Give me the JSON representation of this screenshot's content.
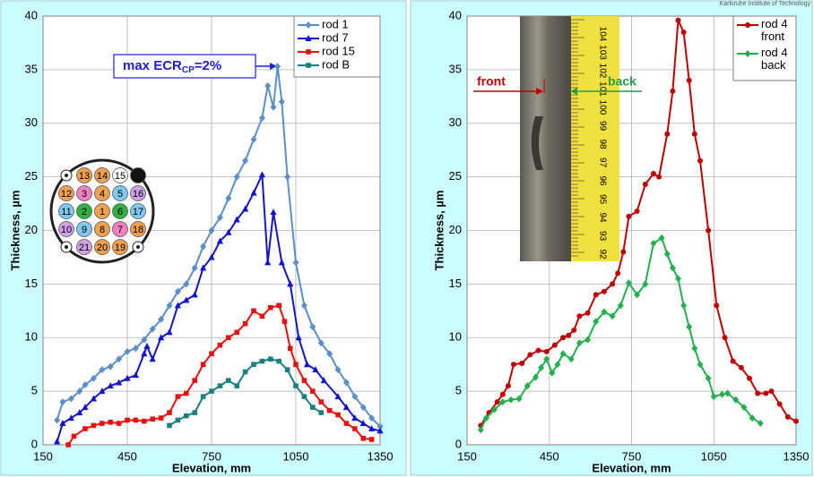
{
  "corner_text": "Karlsruhe Institute of Technology",
  "chart_data": [
    {
      "type": "line",
      "xlabel": "Elevation, mm",
      "ylabel": "Thickness, µm",
      "xlim": [
        150,
        1350
      ],
      "ylim": [
        0,
        40
      ],
      "xticks": [
        150,
        450,
        750,
        1050,
        1350
      ],
      "yticks": [
        0,
        5,
        10,
        15,
        20,
        25,
        30,
        35,
        40
      ],
      "grid": true,
      "legend": "upper right",
      "annotation": {
        "text": "max ECR",
        "sub": "CP",
        "suffix": "=2%"
      },
      "bundle": [
        {
          "label": "",
          "color": "dot"
        },
        {
          "label": "13",
          "color": "#f0a050"
        },
        {
          "label": "14",
          "color": "#f0a050"
        },
        {
          "label": "15",
          "color": "#ffffff"
        },
        {
          "label": "",
          "color": "#111111"
        },
        {
          "label": "12",
          "color": "#f0a050"
        },
        {
          "label": "3",
          "color": "#f080c0"
        },
        {
          "label": "4",
          "color": "#f0a050"
        },
        {
          "label": "5",
          "color": "#80c8f0"
        },
        {
          "label": "16",
          "color": "#d0a0e8"
        },
        {
          "label": "11",
          "color": "#80c8f0"
        },
        {
          "label": "2",
          "color": "#30b040"
        },
        {
          "label": "1",
          "color": "#f0a050"
        },
        {
          "label": "6",
          "color": "#30b040"
        },
        {
          "label": "17",
          "color": "#80c8f0"
        },
        {
          "label": "10",
          "color": "#d0a0e8"
        },
        {
          "label": "9",
          "color": "#80c8f0"
        },
        {
          "label": "8",
          "color": "#f0a050"
        },
        {
          "label": "7",
          "color": "#f080c0"
        },
        {
          "label": "18",
          "color": "#f0a050"
        },
        {
          "label": "",
          "color": "dot"
        },
        {
          "label": "21",
          "color": "#d0a0e8"
        },
        {
          "label": "20",
          "color": "#f0a050"
        },
        {
          "label": "19",
          "color": "#f0a050"
        },
        {
          "label": "",
          "color": "dot"
        }
      ],
      "series": [
        {
          "name": "rod 1",
          "color": "#5b8fc7",
          "marker": "diamond",
          "x": [
            200,
            220,
            250,
            280,
            300,
            330,
            360,
            390,
            420,
            450,
            480,
            510,
            540,
            570,
            600,
            630,
            660,
            690,
            720,
            750,
            780,
            810,
            840,
            870,
            900,
            930,
            950,
            970,
            985,
            1000,
            1020,
            1050,
            1080,
            1110,
            1140,
            1170,
            1200,
            1230,
            1260,
            1290,
            1320,
            1350
          ],
          "values": [
            2.3,
            4,
            4.3,
            5,
            5.6,
            6.2,
            7,
            7.3,
            8,
            8.7,
            9,
            9.8,
            10.8,
            11.7,
            13,
            14.3,
            15,
            16.5,
            18.5,
            20,
            21.2,
            23,
            25,
            26.5,
            28.5,
            30.5,
            33.5,
            31.5,
            35.3,
            32,
            25,
            17,
            13,
            11,
            9.5,
            8.5,
            7,
            5.8,
            4.5,
            3.5,
            2.5,
            1.7
          ]
        },
        {
          "name": "rod 7",
          "color": "#1414cc",
          "marker": "triangle",
          "x": [
            200,
            220,
            250,
            280,
            300,
            330,
            360,
            390,
            420,
            450,
            480,
            510,
            520,
            540,
            570,
            600,
            630,
            660,
            690,
            720,
            750,
            780,
            810,
            840,
            870,
            900,
            930,
            950,
            970,
            1000,
            1030,
            1060,
            1090,
            1120,
            1150,
            1200,
            1230,
            1260,
            1290,
            1320,
            1350
          ],
          "values": [
            0.3,
            2,
            2.5,
            3,
            3.5,
            4.3,
            5,
            5.5,
            5.8,
            6.2,
            6.5,
            8.5,
            9.2,
            8,
            10,
            10.5,
            13,
            13.5,
            14,
            16.5,
            17.5,
            19,
            19.8,
            21,
            22,
            23.5,
            25.2,
            17,
            21.7,
            17,
            15,
            10,
            7.5,
            7,
            6,
            4.5,
            3.5,
            2.5,
            2,
            1.5,
            1.3
          ]
        },
        {
          "name": "rod 15",
          "color": "#e81010",
          "marker": "square",
          "x": [
            240,
            260,
            300,
            330,
            360,
            390,
            420,
            450,
            480,
            510,
            540,
            570,
            600,
            630,
            660,
            690,
            720,
            750,
            780,
            810,
            840,
            870,
            900,
            930,
            960,
            990,
            1010,
            1030,
            1050,
            1080,
            1110,
            1140,
            1170,
            1200,
            1230,
            1260,
            1290,
            1320
          ],
          "values": [
            0,
            0.8,
            1.5,
            1.8,
            2,
            2.1,
            2,
            2.3,
            2.3,
            2.2,
            2.4,
            2.5,
            3,
            4.5,
            4.8,
            6,
            7.5,
            8.5,
            9.3,
            10,
            10.5,
            11.3,
            12.5,
            12,
            12.8,
            13,
            11.5,
            9,
            7.5,
            6,
            5,
            4,
            3.2,
            2.8,
            2,
            1.5,
            0.6,
            0.5
          ]
        },
        {
          "name": "rod B",
          "color": "#1a8080",
          "marker": "square",
          "x": [
            600,
            630,
            660,
            690,
            720,
            750,
            780,
            810,
            840,
            870,
            900,
            930,
            960,
            990,
            1020,
            1050,
            1080,
            1110,
            1140
          ],
          "values": [
            1.8,
            2.3,
            2.7,
            3,
            4.5,
            5,
            5.5,
            6,
            5.5,
            6.8,
            7.5,
            7.8,
            8,
            7.8,
            7,
            5.5,
            4.5,
            3.5,
            3
          ]
        }
      ]
    },
    {
      "type": "line",
      "xlabel": "Elevation, mm",
      "ylabel": "Thickness, µm",
      "xlim": [
        150,
        1350
      ],
      "ylim": [
        0,
        40
      ],
      "xticks": [
        150,
        450,
        750,
        1050,
        1350
      ],
      "yticks": [
        0,
        5,
        10,
        15,
        20,
        25,
        30,
        35,
        40
      ],
      "grid": true,
      "legend": "upper right",
      "photo": {
        "front": "front",
        "back": "back",
        "ruler": [
          "104",
          "103",
          "102",
          "101",
          "100",
          "99",
          "98",
          "97",
          "96",
          "95",
          "94",
          "93",
          "92"
        ]
      },
      "series": [
        {
          "name": "rod 4 front",
          "color": "#c00000",
          "marker": "circle",
          "x": [
            200,
            230,
            260,
            280,
            300,
            320,
            350,
            380,
            410,
            440,
            470,
            500,
            520,
            540,
            560,
            590,
            620,
            650,
            680,
            700,
            720,
            740,
            770,
            800,
            830,
            850,
            880,
            900,
            920,
            940,
            960,
            980,
            1000,
            1030,
            1060,
            1090,
            1120,
            1150,
            1180,
            1210,
            1240,
            1260,
            1290,
            1320,
            1350
          ],
          "values": [
            1.8,
            3,
            4,
            4.7,
            5.5,
            7.5,
            7.6,
            8.4,
            8.8,
            8.7,
            9.3,
            10,
            10.2,
            10.7,
            12,
            12.3,
            14,
            14.3,
            15,
            16,
            18,
            21.3,
            21.8,
            24.3,
            25.3,
            25,
            29,
            33,
            39.6,
            38.5,
            34,
            29,
            26.5,
            20,
            13,
            10,
            7.8,
            7.2,
            6.2,
            4.8,
            4.8,
            5,
            3.8,
            2.6,
            2.2
          ]
        },
        {
          "name": "rod 4 back",
          "color": "#22b050",
          "marker": "diamond",
          "x": [
            200,
            220,
            250,
            280,
            310,
            340,
            370,
            400,
            420,
            440,
            460,
            480,
            500,
            530,
            560,
            590,
            620,
            650,
            680,
            710,
            740,
            770,
            800,
            830,
            860,
            880,
            900,
            920,
            940,
            960,
            980,
            1000,
            1030,
            1050,
            1080,
            1100,
            1130,
            1160,
            1190,
            1220
          ],
          "values": [
            1.4,
            2.5,
            3.3,
            4,
            4.2,
            4.3,
            5.5,
            6.3,
            7.2,
            8,
            6.7,
            7.5,
            8.5,
            8,
            9.5,
            9.8,
            11.5,
            12.4,
            12,
            13,
            15.1,
            14,
            15,
            18.8,
            19.3,
            17.8,
            16.5,
            15.5,
            13,
            11,
            9,
            7.5,
            6.2,
            4.5,
            4.7,
            4.8,
            4.2,
            3.5,
            2.5,
            2
          ]
        }
      ]
    }
  ]
}
